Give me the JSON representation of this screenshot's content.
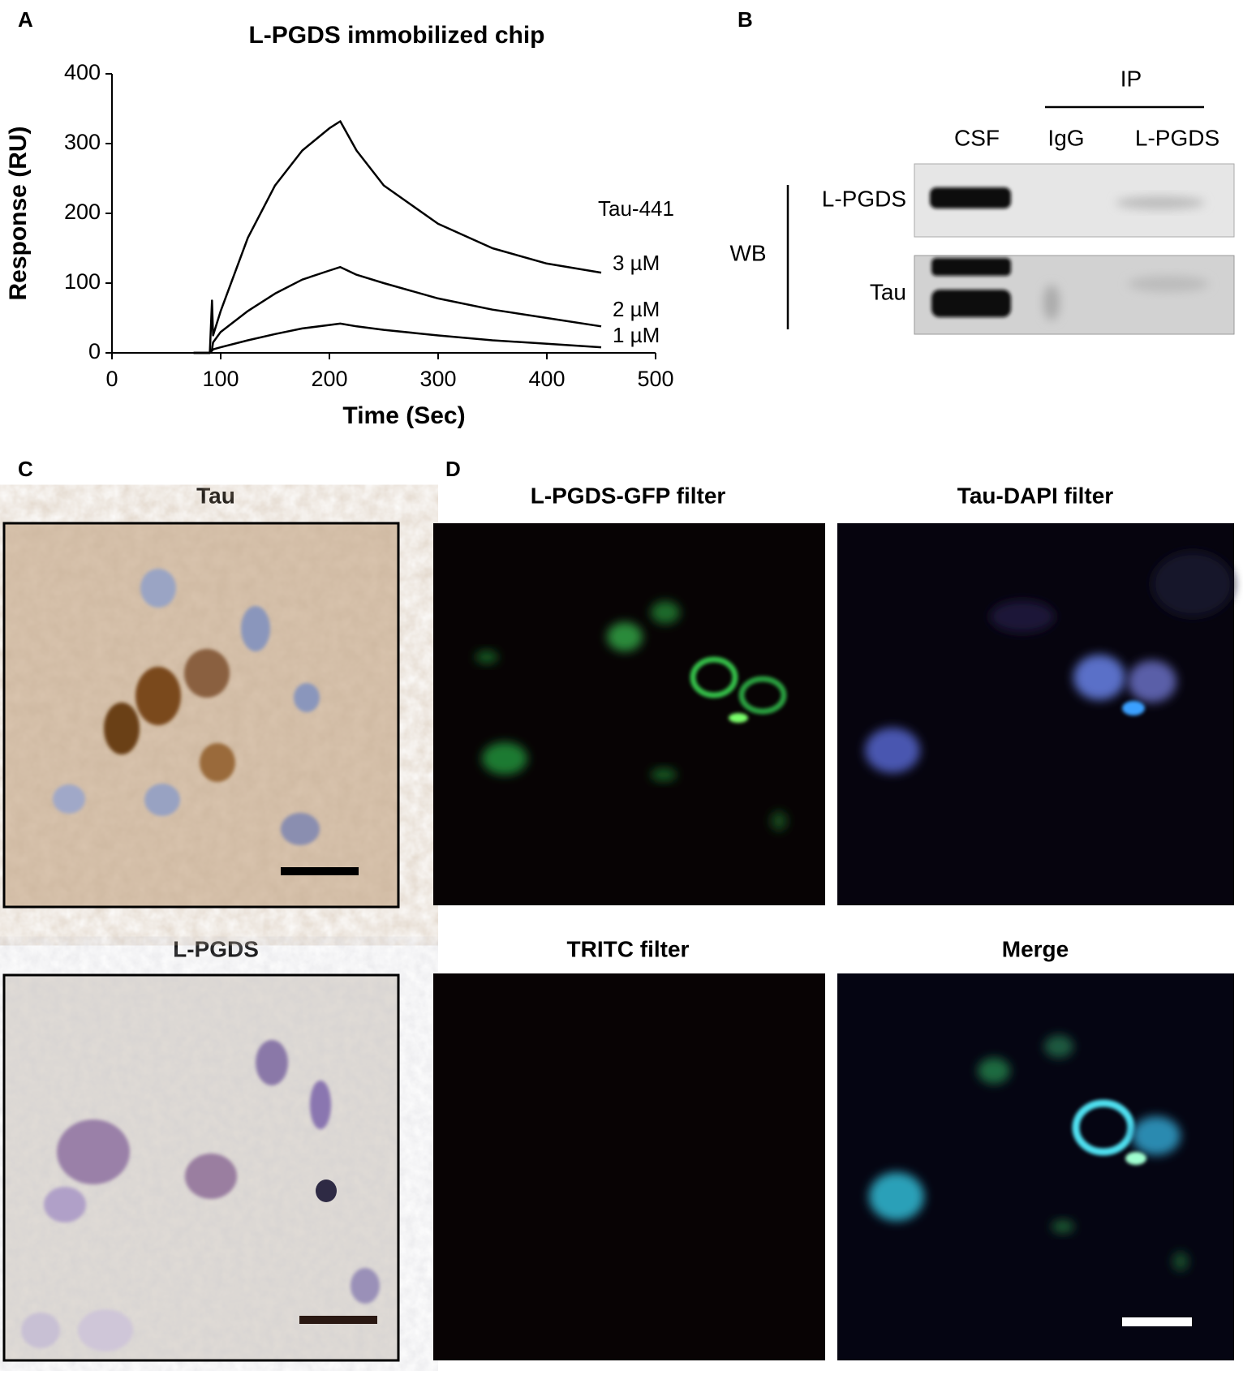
{
  "panel_labels": [
    "A",
    "B",
    "C",
    "D"
  ],
  "chart_data": {
    "type": "line",
    "title": "L-PGDS immobilized chip",
    "x_label": "Time (Sec)",
    "y_label": "Response (RU)",
    "annotation": "Tau-441",
    "x": [
      75,
      90,
      92,
      93,
      100,
      125,
      150,
      175,
      200,
      210,
      225,
      250,
      300,
      350,
      400,
      450
    ],
    "series": [
      {
        "name": "3 µM",
        "color": "#000000",
        "values": [
          0,
          0,
          75,
          25,
          60,
          165,
          240,
          290,
          322,
          332,
          290,
          240,
          185,
          150,
          128,
          115
        ]
      },
      {
        "name": "2 µM",
        "color": "#000000",
        "values": [
          0,
          0,
          5,
          15,
          30,
          60,
          85,
          105,
          118,
          123,
          112,
          100,
          78,
          62,
          50,
          38
        ]
      },
      {
        "name": "1 µM",
        "color": "#000000",
        "values": [
          0,
          0,
          3,
          5,
          8,
          18,
          27,
          35,
          40,
          42,
          38,
          33,
          25,
          18,
          13,
          8
        ]
      }
    ],
    "xlim": [
      0,
      500
    ],
    "ylim": [
      0,
      400
    ],
    "xticks": [
      0,
      100,
      200,
      300,
      400,
      500
    ],
    "yticks": [
      0,
      100,
      200,
      300,
      400
    ]
  },
  "western_blot": {
    "group_label": "IP",
    "lanes": [
      "CSF",
      "IgG",
      "L-PGDS"
    ],
    "method": "WB",
    "rows": [
      "L-PGDS",
      "Tau"
    ]
  },
  "micrographs": {
    "C": [
      "Tau",
      "L-PGDS"
    ],
    "D": [
      "L-PGDS-GFP filter",
      "Tau-DAPI filter",
      "TRITC filter",
      "Merge"
    ]
  }
}
